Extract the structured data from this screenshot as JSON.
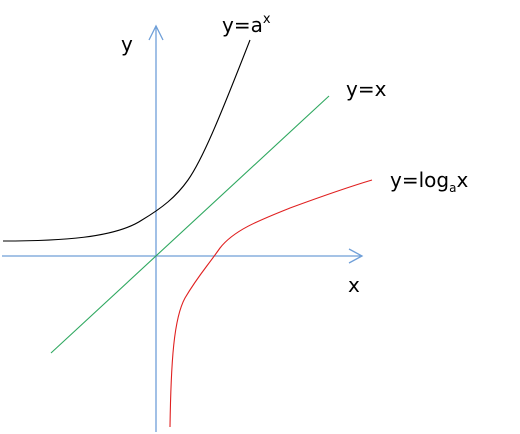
{
  "colors": {
    "axis": "#6f9fd8",
    "exp_curve": "#000000",
    "identity_line": "#2fa860",
    "log_curve": "#e02020",
    "text": "#000000",
    "background": "#ffffff"
  },
  "labels": {
    "y_axis": "y",
    "x_axis": "x",
    "exp_prefix": "y=a",
    "exp_superscript": "x",
    "identity": "y=x",
    "log_prefix": "y=log",
    "log_subscript": "a",
    "log_suffix": "x"
  }
}
